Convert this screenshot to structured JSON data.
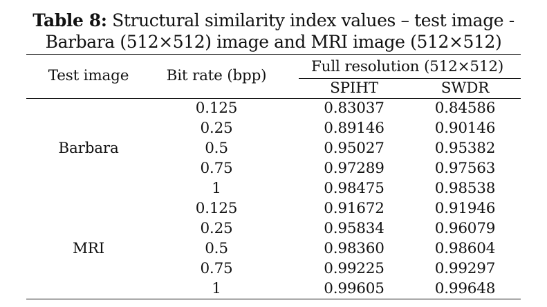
{
  "caption": {
    "label": "Table 8:",
    "line1": " Structural similarity index values – test image -",
    "line2": "Barbara (512×512) image and MRI image (512×512)"
  },
  "table": {
    "headers": {
      "test_image": "Test image",
      "bit_rate": "Bit rate (bpp)",
      "group": "Full resolution (512×512)",
      "spiht": "SPIHT",
      "swdr": "SWDR"
    },
    "groups": [
      {
        "name": "Barbara",
        "rows": [
          {
            "bpp": "0.125",
            "spiht": "0.83037",
            "swdr": "0.84586"
          },
          {
            "bpp": "0.25",
            "spiht": "0.89146",
            "swdr": "0.90146"
          },
          {
            "bpp": "0.5",
            "spiht": "0.95027",
            "swdr": "0.95382"
          },
          {
            "bpp": "0.75",
            "spiht": "0.97289",
            "swdr": "0.97563"
          },
          {
            "bpp": "1",
            "spiht": "0.98475",
            "swdr": "0.98538"
          }
        ]
      },
      {
        "name": "MRI",
        "rows": [
          {
            "bpp": "0.125",
            "spiht": "0.91672",
            "swdr": "0.91946"
          },
          {
            "bpp": "0.25",
            "spiht": "0.95834",
            "swdr": "0.96079"
          },
          {
            "bpp": "0.5",
            "spiht": "0.98360",
            "swdr": "0.98604"
          },
          {
            "bpp": "0.75",
            "spiht": "0.99225",
            "swdr": "0.99297"
          },
          {
            "bpp": "1",
            "spiht": "0.99605",
            "swdr": "0.99648"
          }
        ]
      }
    ]
  }
}
